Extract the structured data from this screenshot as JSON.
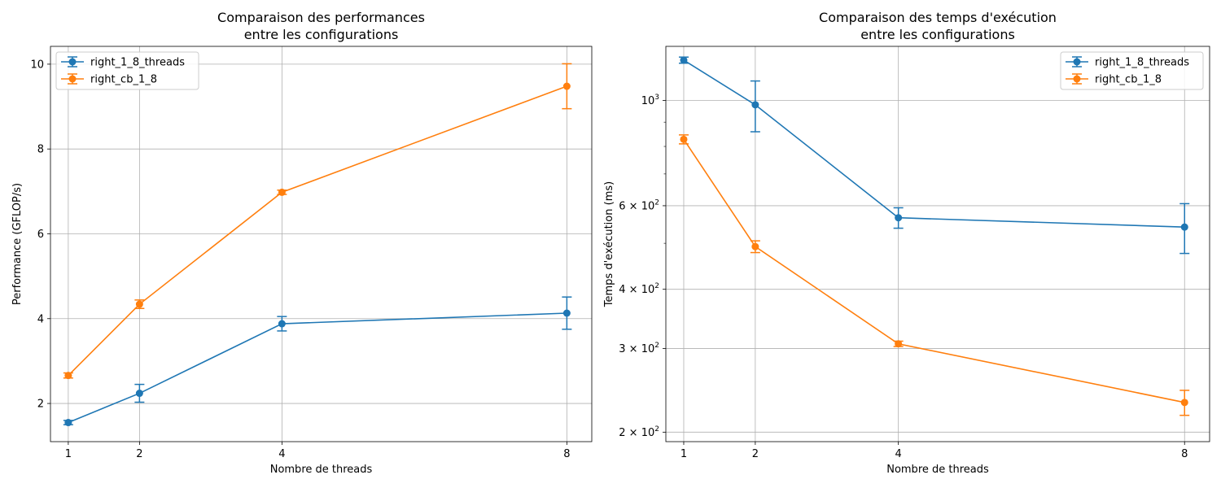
{
  "chart_data": [
    {
      "type": "line",
      "title": "Comparaison des performances\nentre les configurations",
      "xlabel": "Nombre de threads",
      "ylabel": "Performance (GFLOP/s)",
      "x": [
        1,
        2,
        4,
        8
      ],
      "xticks": [
        "1",
        "2",
        "4",
        "8"
      ],
      "yticks": [
        2,
        4,
        6,
        8,
        10
      ],
      "xlim": [
        0.75,
        8.35
      ],
      "ylim": [
        1.1,
        10.42
      ],
      "yscale": "linear",
      "grid": true,
      "legend": "top-left",
      "series": [
        {
          "name": "right_1_8_threads",
          "color": "#1f77b4",
          "values": [
            1.55,
            2.24,
            3.88,
            4.13
          ],
          "err": [
            0.05,
            0.21,
            0.17,
            0.38
          ]
        },
        {
          "name": "right_cb_1_8",
          "color": "#ff7f0e",
          "values": [
            2.66,
            4.34,
            6.98,
            9.48
          ],
          "err": [
            0.06,
            0.1,
            0.05,
            0.53
          ]
        }
      ]
    },
    {
      "type": "line",
      "title": "Comparaison des temps d'exécution\nentre les configurations",
      "xlabel": "Nombre de threads",
      "ylabel": "Temps d'exécution (ms)",
      "x": [
        1,
        2,
        4,
        8
      ],
      "xticks": [
        "1",
        "2",
        "4",
        "8"
      ],
      "yticks": [
        {
          "value": 200,
          "base": "2 × 10",
          "exp": "2"
        },
        {
          "value": 300,
          "base": "3 × 10",
          "exp": "2"
        },
        {
          "value": 400,
          "base": "4 × 10",
          "exp": "2"
        },
        {
          "value": 600,
          "base": "6 × 10",
          "exp": "2"
        },
        {
          "value": 1000,
          "base": "10",
          "exp": "3"
        }
      ],
      "yminorticks": [
        500,
        700,
        800,
        900
      ],
      "xlim": [
        0.75,
        8.35
      ],
      "ylim": [
        191,
        1300
      ],
      "yscale": "log",
      "grid": true,
      "legend": "top-right",
      "series": [
        {
          "name": "right_1_8_threads",
          "color": "#1f77b4",
          "values": [
            1216,
            979,
            566,
            541
          ],
          "err": [
            18,
            120,
            28,
            65
          ]
        },
        {
          "name": "right_cb_1_8",
          "color": "#ff7f0e",
          "values": [
            828,
            492,
            307,
            231
          ],
          "err": [
            18,
            14,
            4,
            14
          ]
        }
      ]
    }
  ]
}
